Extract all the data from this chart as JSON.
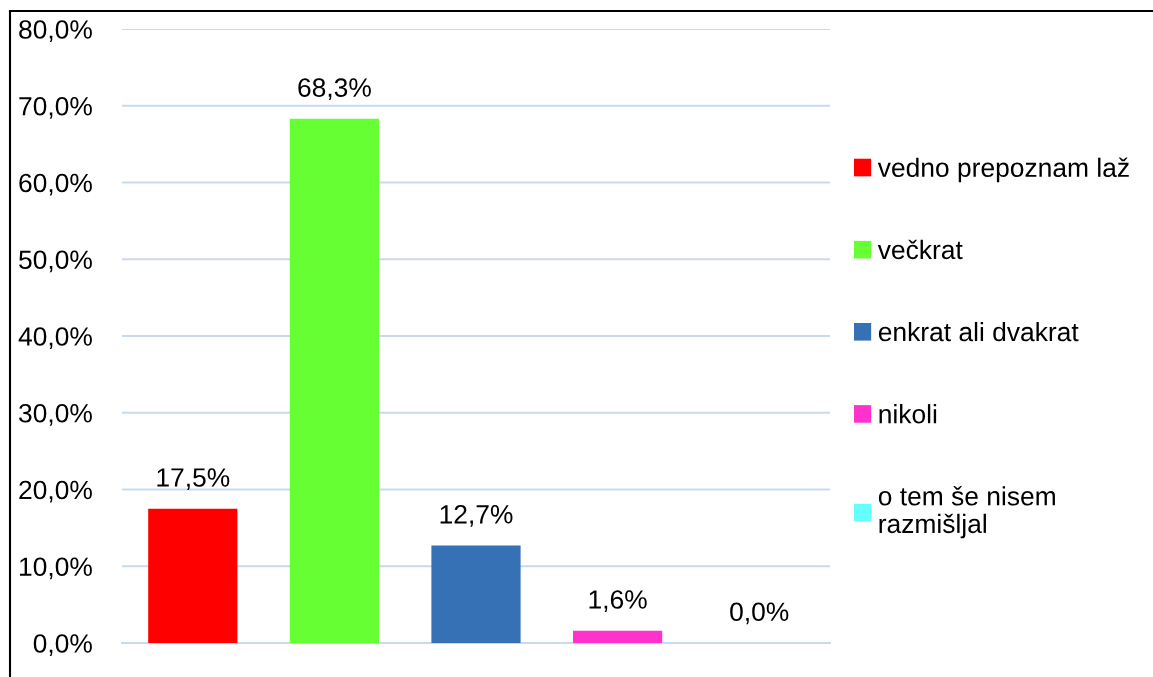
{
  "chart_data": {
    "type": "bar",
    "categories": [
      null,
      null,
      null,
      null,
      null
    ],
    "series": [
      {
        "name": "vedno prepoznam laž",
        "color": "#ff0000",
        "values": [
          17.5,
          null,
          null,
          null,
          null
        ],
        "value_labels": [
          "17,5%",
          null,
          null,
          null,
          null
        ]
      },
      {
        "name": "večkrat",
        "color": "#66ff33",
        "values": [
          null,
          68.3,
          null,
          null,
          null
        ],
        "value_labels": [
          null,
          "68,3%",
          null,
          null,
          null
        ]
      },
      {
        "name": "enkrat ali dvakrat",
        "color": "#3670b5",
        "values": [
          null,
          null,
          12.7,
          null,
          null
        ],
        "value_labels": [
          null,
          null,
          "12,7%",
          null,
          null
        ]
      },
      {
        "name": "nikoli",
        "color": "#ff33cc",
        "values": [
          null,
          null,
          null,
          1.6,
          null
        ],
        "value_labels": [
          null,
          null,
          null,
          "1,6%",
          null
        ]
      },
      {
        "name": "o tem še nisem razmišljal",
        "color": "#66ffff",
        "values": [
          null,
          null,
          null,
          null,
          0.0
        ],
        "value_labels": [
          null,
          null,
          null,
          null,
          "0,0%"
        ]
      }
    ],
    "ylim": [
      0,
      80
    ],
    "yticks": [
      {
        "value": 0,
        "label": "0,0%"
      },
      {
        "value": 10,
        "label": "10,0%"
      },
      {
        "value": 20,
        "label": "20,0%"
      },
      {
        "value": 30,
        "label": "30,0%"
      },
      {
        "value": 40,
        "label": "40,0%"
      },
      {
        "value": 50,
        "label": "50,0%"
      },
      {
        "value": 60,
        "label": "60,0%"
      },
      {
        "value": 70,
        "label": "70,0%"
      },
      {
        "value": 80,
        "label": "80,0%"
      }
    ],
    "grid": "y",
    "legend": "right",
    "tick_labels": "y"
  }
}
